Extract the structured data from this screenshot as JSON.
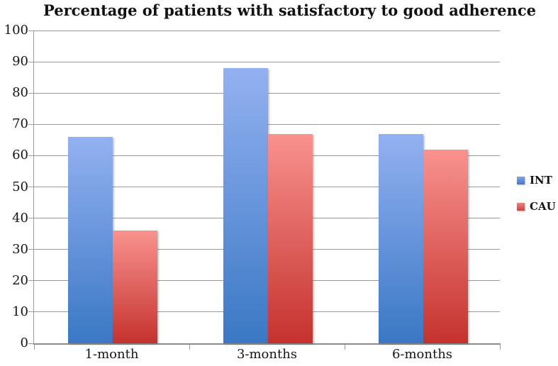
{
  "chart_data": {
    "type": "bar",
    "title": "Percentage of patients with satisfactory to good adherence",
    "categories": [
      "1-month",
      "3-months",
      "6-months"
    ],
    "series": [
      {
        "name": "INT",
        "values": [
          66,
          88,
          67
        ],
        "color_top": "#93B1F1",
        "color_bottom": "#3A78C4",
        "legend_color_top": "#7FA5EC",
        "legend_color_bottom": "#4478CC"
      },
      {
        "name": "CAU",
        "values": [
          36,
          67,
          62
        ],
        "color_top": "#F9928E",
        "color_bottom": "#C5322E",
        "legend_color_top": "#F2817D",
        "legend_color_bottom": "#CE423D"
      }
    ],
    "xlabel": "",
    "ylabel": "",
    "ylim": [
      0,
      100
    ],
    "y_ticks": [
      0,
      10,
      20,
      30,
      40,
      50,
      60,
      70,
      80,
      90,
      100
    ],
    "grid": "horizontal",
    "legend_position": "right"
  },
  "colors": {
    "background": "#FFFFFF",
    "gridline": "#9A9A9A",
    "axis": "#8C8C8C",
    "text": "#151515"
  }
}
